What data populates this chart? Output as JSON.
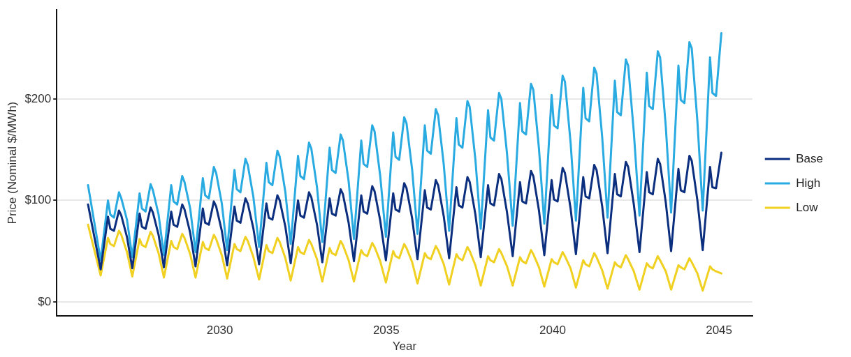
{
  "chart_data": {
    "type": "line",
    "xlabel": "Year",
    "ylabel": "Price (Nominal $/MWh)",
    "x": [
      2026.04,
      2026.42,
      2026.64,
      2026.71,
      2026.82,
      2026.97,
      2027.04,
      2027.21,
      2027.37,
      2027.59,
      2027.66,
      2027.77,
      2027.92,
      2027.99,
      2028.16,
      2028.32,
      2028.54,
      2028.61,
      2028.72,
      2028.87,
      2028.94,
      2029.11,
      2029.27,
      2029.49,
      2029.56,
      2029.67,
      2029.82,
      2029.89,
      2030.06,
      2030.22,
      2030.44,
      2030.51,
      2030.62,
      2030.77,
      2030.84,
      2031.01,
      2031.18,
      2031.4,
      2031.47,
      2031.58,
      2031.73,
      2031.8,
      2031.97,
      2032.13,
      2032.35,
      2032.42,
      2032.53,
      2032.68,
      2032.75,
      2032.92,
      2033.08,
      2033.3,
      2033.37,
      2033.48,
      2033.63,
      2033.7,
      2033.87,
      2034.03,
      2034.25,
      2034.32,
      2034.43,
      2034.58,
      2034.65,
      2034.82,
      2034.99,
      2035.21,
      2035.28,
      2035.39,
      2035.54,
      2035.61,
      2035.78,
      2035.94,
      2036.16,
      2036.23,
      2036.34,
      2036.49,
      2036.56,
      2036.73,
      2036.89,
      2037.11,
      2037.18,
      2037.29,
      2037.44,
      2037.51,
      2037.68,
      2037.84,
      2038.06,
      2038.13,
      2038.24,
      2038.39,
      2038.46,
      2038.63,
      2038.8,
      2039.02,
      2039.09,
      2039.2,
      2039.35,
      2039.42,
      2039.59,
      2039.75,
      2039.97,
      2040.04,
      2040.15,
      2040.3,
      2040.37,
      2040.54,
      2040.7,
      2040.92,
      2040.99,
      2041.1,
      2041.25,
      2041.32,
      2041.49,
      2041.65,
      2041.87,
      2041.94,
      2042.05,
      2042.2,
      2042.27,
      2042.44,
      2042.61,
      2042.83,
      2042.9,
      2043.01,
      2043.16,
      2043.23,
      2043.4,
      2043.56,
      2043.78,
      2043.85,
      2043.96,
      2044.11,
      2044.18,
      2044.35,
      2044.51,
      2044.73,
      2044.8,
      2044.91,
      2045.07
    ],
    "series": [
      {
        "name": "Base",
        "color": "#0b2f7e",
        "values": [
          96,
          32,
          84,
          72,
          70,
          90,
          85,
          64,
          33,
          87,
          74,
          72,
          93,
          88,
          66,
          34,
          89,
          76,
          74,
          96,
          91,
          68,
          35,
          92,
          78,
          76,
          99,
          94,
          70,
          36,
          94,
          80,
          78,
          102,
          97,
          72,
          37,
          97,
          83,
          81,
          105,
          100,
          74,
          38,
          100,
          85,
          83,
          108,
          103,
          76,
          39,
          102,
          87,
          85,
          111,
          106,
          78,
          40,
          105,
          89,
          87,
          114,
          109,
          80,
          41,
          107,
          91,
          89,
          117,
          112,
          82,
          42,
          110,
          93,
          91,
          120,
          115,
          84,
          43,
          113,
          95,
          93,
          123,
          118,
          86,
          44,
          115,
          97,
          95,
          126,
          121,
          88,
          45,
          118,
          99,
          97,
          129,
          124,
          90,
          46,
          120,
          101,
          99,
          132,
          127,
          92,
          47,
          123,
          104,
          102,
          135,
          130,
          94,
          48,
          126,
          106,
          104,
          138,
          133,
          96,
          49,
          128,
          108,
          106,
          141,
          136,
          98,
          50,
          131,
          110,
          108,
          144,
          139,
          100,
          51,
          133,
          113,
          112,
          147
        ]
      },
      {
        "name": "High",
        "color": "#29abe2",
        "values": [
          115,
          41,
          100,
          86,
          83,
          108,
          102,
          81,
          44,
          107,
          92,
          89,
          116,
          110,
          86,
          46,
          115,
          99,
          96,
          124,
          118,
          92,
          49,
          122,
          105,
          102,
          133,
          127,
          97,
          51,
          130,
          111,
          108,
          141,
          135,
          103,
          54,
          137,
          118,
          115,
          149,
          143,
          108,
          57,
          144,
          124,
          121,
          157,
          151,
          113,
          59,
          152,
          130,
          127,
          165,
          159,
          119,
          62,
          159,
          136,
          133,
          174,
          168,
          124,
          64,
          167,
          143,
          140,
          182,
          176,
          130,
          67,
          174,
          149,
          146,
          190,
          184,
          135,
          70,
          181,
          155,
          152,
          198,
          192,
          140,
          72,
          189,
          162,
          159,
          206,
          200,
          146,
          75,
          196,
          168,
          165,
          215,
          209,
          151,
          77,
          204,
          174,
          171,
          223,
          217,
          157,
          80,
          211,
          181,
          178,
          231,
          225,
          162,
          83,
          218,
          187,
          184,
          239,
          233,
          167,
          85,
          226,
          193,
          190,
          247,
          241,
          173,
          88,
          233,
          199,
          196,
          256,
          250,
          178,
          90,
          241,
          206,
          203,
          265
        ]
      },
      {
        "name": "Low",
        "color": "#f0d020",
        "values": [
          76,
          26,
          63,
          57,
          55,
          70,
          66,
          49,
          25,
          62,
          56,
          54,
          69,
          65,
          48,
          24,
          60,
          54,
          52,
          67,
          63,
          47,
          24,
          59,
          53,
          51,
          66,
          62,
          46,
          23,
          57,
          52,
          50,
          64,
          60,
          44,
          22,
          56,
          50,
          48,
          63,
          59,
          43,
          21,
          54,
          49,
          47,
          61,
          57,
          42,
          20,
          53,
          48,
          46,
          60,
          56,
          41,
          20,
          51,
          47,
          45,
          58,
          54,
          40,
          19,
          50,
          45,
          43,
          57,
          53,
          39,
          18,
          48,
          44,
          42,
          55,
          51,
          37,
          17,
          47,
          43,
          41,
          54,
          50,
          36,
          16,
          45,
          41,
          39,
          52,
          48,
          35,
          16,
          44,
          40,
          38,
          51,
          47,
          34,
          15,
          42,
          39,
          37,
          49,
          45,
          33,
          14,
          41,
          37,
          35,
          48,
          44,
          31,
          13,
          39,
          36,
          34,
          46,
          42,
          30,
          12,
          38,
          35,
          33,
          45,
          41,
          30,
          12,
          36,
          34,
          32,
          43,
          39,
          28,
          11,
          35,
          32,
          30,
          28
        ]
      }
    ],
    "xlim": [
      2025.1,
      2046.0
    ],
    "xticks": [
      2030,
      2035,
      2040,
      2045
    ],
    "ylim": [
      -14,
      288
    ],
    "yticks": [
      {
        "value": 0,
        "label": "$0"
      },
      {
        "value": 100,
        "label": "$100"
      },
      {
        "value": 200,
        "label": "$200"
      }
    ],
    "grid": "y",
    "legend": "right",
    "marker": "none",
    "line_style": "solid"
  }
}
